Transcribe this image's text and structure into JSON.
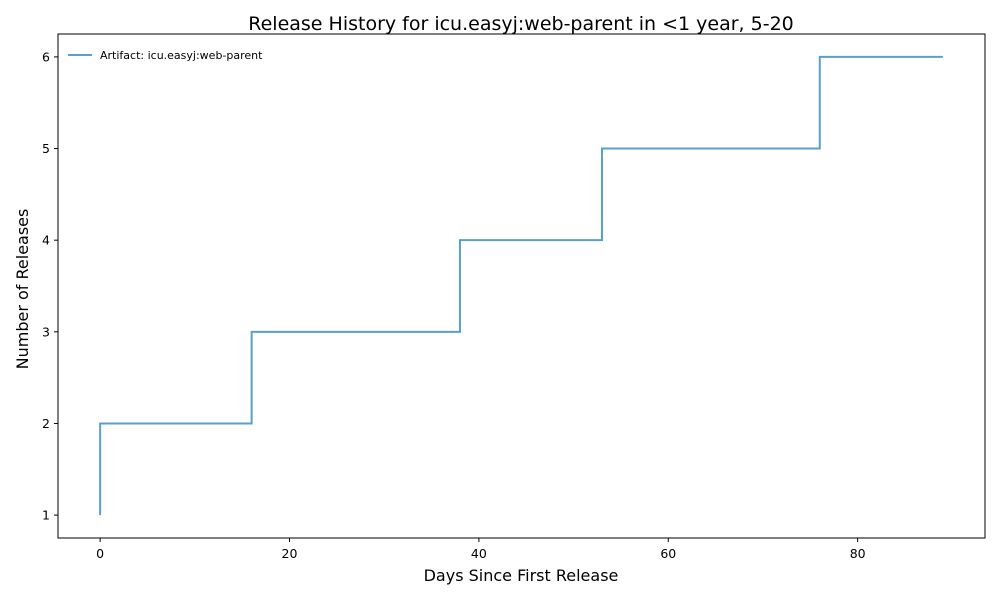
{
  "chart_data": {
    "type": "line",
    "step": true,
    "title": "Release History for icu.easyj:web-parent in <1 year, 5-20",
    "xlabel": "Days Since First Release",
    "ylabel": "Number of Releases",
    "xlim": [
      -4.45,
      93.45
    ],
    "ylim": [
      0.75,
      6.25
    ],
    "xticks": [
      0,
      20,
      40,
      60,
      80
    ],
    "yticks": [
      1,
      2,
      3,
      4,
      5,
      6
    ],
    "grid": false,
    "legend_position": "top-left",
    "series": [
      {
        "name": "Artifact: icu.easyj:web-parent",
        "color": "#5b9fcd",
        "x": [
          0,
          0,
          16,
          38,
          53,
          76,
          89
        ],
        "y": [
          1,
          2,
          3,
          4,
          5,
          6,
          6
        ]
      }
    ]
  }
}
